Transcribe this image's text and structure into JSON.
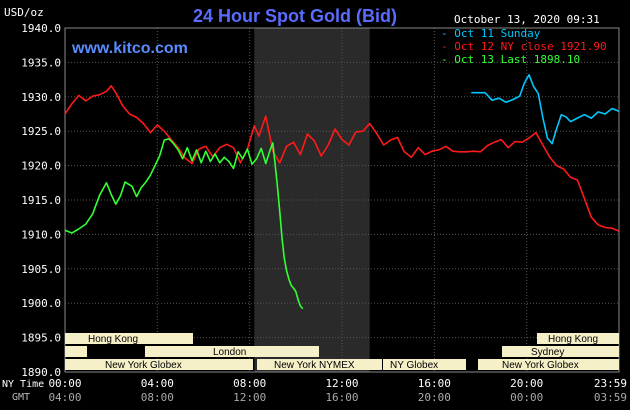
{
  "header": {
    "title": "24 Hour Spot Gold (Bid)",
    "unit_label": "USD/oz",
    "timestamp": "October 13, 2020 09:31",
    "site": "www.kitco.com"
  },
  "legend": [
    {
      "label": "Oct 11 Sunday",
      "color": "#00c8ff"
    },
    {
      "label": "Oct 12 NY close 1921.90",
      "color": "#ff1a1a"
    },
    {
      "label": "Oct 13 Last 1898.10",
      "color": "#33ff33"
    }
  ],
  "axis": {
    "ny_time_label": "NY Time",
    "gmt_label": "GMT",
    "ny_ticks": [
      "00:00",
      "04:00",
      "08:00",
      "12:00",
      "16:00",
      "20:00",
      "23:59"
    ],
    "gmt_ticks": [
      "04:00",
      "08:00",
      "12:00",
      "16:00",
      "20:00",
      "00:00",
      "03:59"
    ]
  },
  "sessions": {
    "hong_kong_1": "Hong Kong",
    "london": "London",
    "new_york_globex_1": "New York Globex",
    "new_york_nymex": "New York NYMEX",
    "ny_globex": "NY Globex",
    "hong_kong_2": "Hong Kong",
    "sydney": "Sydney",
    "new_york_globex_2": "New York Globex"
  },
  "colors": {
    "background": "#000000",
    "grid": "#555555",
    "shade": "#2a2a2a",
    "title": "#5a6cff",
    "site": "#5a8cff",
    "label_box": "#f5f0c8"
  },
  "chart_data": {
    "type": "line",
    "title": "24 Hour Spot Gold (Bid)",
    "ylabel": "USD/oz",
    "xlabel": "NY Time",
    "ylim": [
      1890,
      1940
    ],
    "yticks": [
      1890.0,
      1895.0,
      1900.0,
      1905.0,
      1910.0,
      1915.0,
      1920.0,
      1925.0,
      1930.0,
      1935.0,
      1940.0
    ],
    "xlim_hours": [
      0,
      24
    ],
    "grid": true,
    "legend_position": "top-right",
    "shaded_range_hours": [
      8.2,
      13.2
    ],
    "series": [
      {
        "name": "Oct 11 Sunday",
        "color": "#00c8ff",
        "x": [
          17.6,
          18.0,
          18.2,
          18.5,
          18.8,
          19.1,
          19.4,
          19.7,
          19.9,
          20.1,
          20.3,
          20.5,
          20.7,
          20.9,
          21.1,
          21.3,
          21.5,
          21.7,
          21.9,
          22.2,
          22.5,
          22.8,
          23.1,
          23.4,
          23.7,
          23.99
        ],
        "y": [
          1930.6,
          1930.6,
          1930.6,
          1929.5,
          1929.8,
          1929.2,
          1929.6,
          1930.1,
          1932.0,
          1933.2,
          1931.5,
          1930.5,
          1927.0,
          1924.0,
          1923.2,
          1925.4,
          1927.4,
          1927.1,
          1926.4,
          1926.9,
          1927.4,
          1926.9,
          1927.8,
          1927.5,
          1928.3,
          1927.9
        ]
      },
      {
        "name": "Oct 12 NY close 1921.90",
        "color": "#ff1a1a",
        "x": [
          0.0,
          0.3,
          0.6,
          0.9,
          1.2,
          1.5,
          1.8,
          2.0,
          2.2,
          2.5,
          2.8,
          3.1,
          3.4,
          3.7,
          4.0,
          4.3,
          4.6,
          4.9,
          5.2,
          5.5,
          5.8,
          6.1,
          6.4,
          6.7,
          7.0,
          7.3,
          7.6,
          7.9,
          8.2,
          8.4,
          8.7,
          9.0,
          9.3,
          9.6,
          9.9,
          10.2,
          10.5,
          10.8,
          11.1,
          11.4,
          11.7,
          12.0,
          12.3,
          12.6,
          12.9,
          13.2,
          13.5,
          13.8,
          14.1,
          14.4,
          14.7,
          15.0,
          15.3,
          15.6,
          15.9,
          16.2,
          16.5,
          16.8,
          17.1,
          17.4,
          17.7,
          18.0,
          18.3,
          18.6,
          18.9,
          19.2,
          19.5,
          19.8,
          20.1,
          20.4,
          20.7,
          21.0,
          21.3,
          21.6,
          21.9,
          22.2,
          22.5,
          22.8,
          23.1,
          23.4,
          23.7,
          23.99
        ],
        "y": [
          1927.5,
          1929.0,
          1930.2,
          1929.4,
          1930.1,
          1930.3,
          1930.8,
          1931.6,
          1930.6,
          1928.7,
          1927.5,
          1927.0,
          1926.1,
          1924.8,
          1925.9,
          1925.0,
          1923.8,
          1922.6,
          1921.1,
          1920.3,
          1922.4,
          1922.8,
          1921.3,
          1922.6,
          1923.1,
          1922.6,
          1920.4,
          1922.4,
          1925.8,
          1924.3,
          1927.2,
          1922.1,
          1920.4,
          1922.8,
          1923.4,
          1921.6,
          1924.6,
          1923.6,
          1921.4,
          1923.0,
          1925.3,
          1923.8,
          1923.0,
          1924.9,
          1925.0,
          1926.1,
          1924.7,
          1923.0,
          1923.7,
          1924.1,
          1922.0,
          1921.2,
          1922.6,
          1921.6,
          1922.1,
          1922.3,
          1922.8,
          1922.1,
          1922.0,
          1922.0,
          1922.1,
          1922.0,
          1922.9,
          1923.4,
          1923.8,
          1922.6,
          1923.5,
          1923.4,
          1924.0,
          1924.8,
          1923.0,
          1921.2,
          1920.0,
          1919.5,
          1918.3,
          1917.9,
          1915.2,
          1912.5,
          1911.4,
          1911.0,
          1910.9,
          1910.5
        ]
      },
      {
        "name": "Oct 13 Last 1898.10",
        "color": "#33ff33",
        "x": [
          0.0,
          0.3,
          0.6,
          0.9,
          1.2,
          1.5,
          1.8,
          2.0,
          2.2,
          2.4,
          2.6,
          2.9,
          3.1,
          3.3,
          3.5,
          3.7,
          3.9,
          4.1,
          4.3,
          4.5,
          4.7,
          4.9,
          5.1,
          5.3,
          5.5,
          5.7,
          5.9,
          6.1,
          6.3,
          6.5,
          6.7,
          6.9,
          7.1,
          7.3,
          7.5,
          7.7,
          7.9,
          8.1,
          8.3,
          8.5,
          8.7,
          8.9,
          9.0,
          9.1,
          9.2,
          9.3,
          9.4,
          9.5,
          9.6,
          9.7,
          9.8,
          9.9,
          10.0,
          10.1,
          10.2,
          10.3
        ],
        "y": [
          1910.6,
          1910.2,
          1910.8,
          1911.5,
          1913.0,
          1915.7,
          1917.5,
          1915.8,
          1914.4,
          1915.6,
          1917.6,
          1917.0,
          1915.5,
          1916.8,
          1917.6,
          1918.6,
          1920.0,
          1921.4,
          1923.7,
          1923.9,
          1923.2,
          1922.3,
          1921.0,
          1922.6,
          1920.7,
          1922.3,
          1920.4,
          1922.1,
          1920.6,
          1921.7,
          1920.4,
          1921.2,
          1920.6,
          1919.6,
          1922.0,
          1921.0,
          1922.4,
          1920.2,
          1921.0,
          1922.5,
          1920.3,
          1922.4,
          1923.3,
          1920.2,
          1917.0,
          1913.4,
          1909.5,
          1906.5,
          1904.7,
          1903.5,
          1902.6,
          1902.2,
          1901.7,
          1900.5,
          1899.6,
          1899.2
        ]
      }
    ]
  }
}
